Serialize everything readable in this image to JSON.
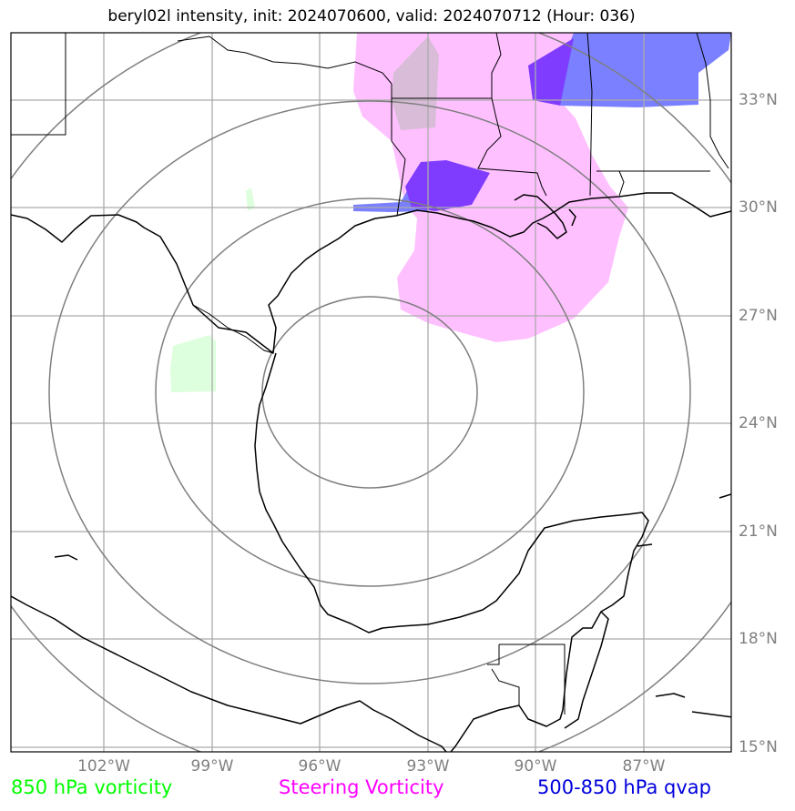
{
  "title": "beryl02l intensity, init: 2024070600, valid: 2024070712 (Hour: 036)",
  "axes": {
    "lon_labels": [
      "102°W",
      "99°W",
      "96°W",
      "93°W",
      "90°W",
      "87°W"
    ],
    "lat_labels": [
      "33°N",
      "30°N",
      "27°N",
      "24°N",
      "21°N",
      "18°N",
      "15°N"
    ]
  },
  "legend": {
    "vorticity_label": "850 hPa vorticity",
    "steering_label": "Steering Vorticity",
    "qvap_label": "500-850 hPa qvap"
  },
  "colors": {
    "vorticity": "#00ff00",
    "steering": "#ff00ff",
    "qvap": "#0000dd",
    "steering_fill": "#ffc0ff",
    "qvap_fill": "#7a80ff",
    "qvap_overlap_fill": "#7f3cff",
    "vorticity_fill": "#ddffdd",
    "grid": "#aaaaaa",
    "range_rings": "#7f7f7f",
    "coastline": "#000000"
  }
}
